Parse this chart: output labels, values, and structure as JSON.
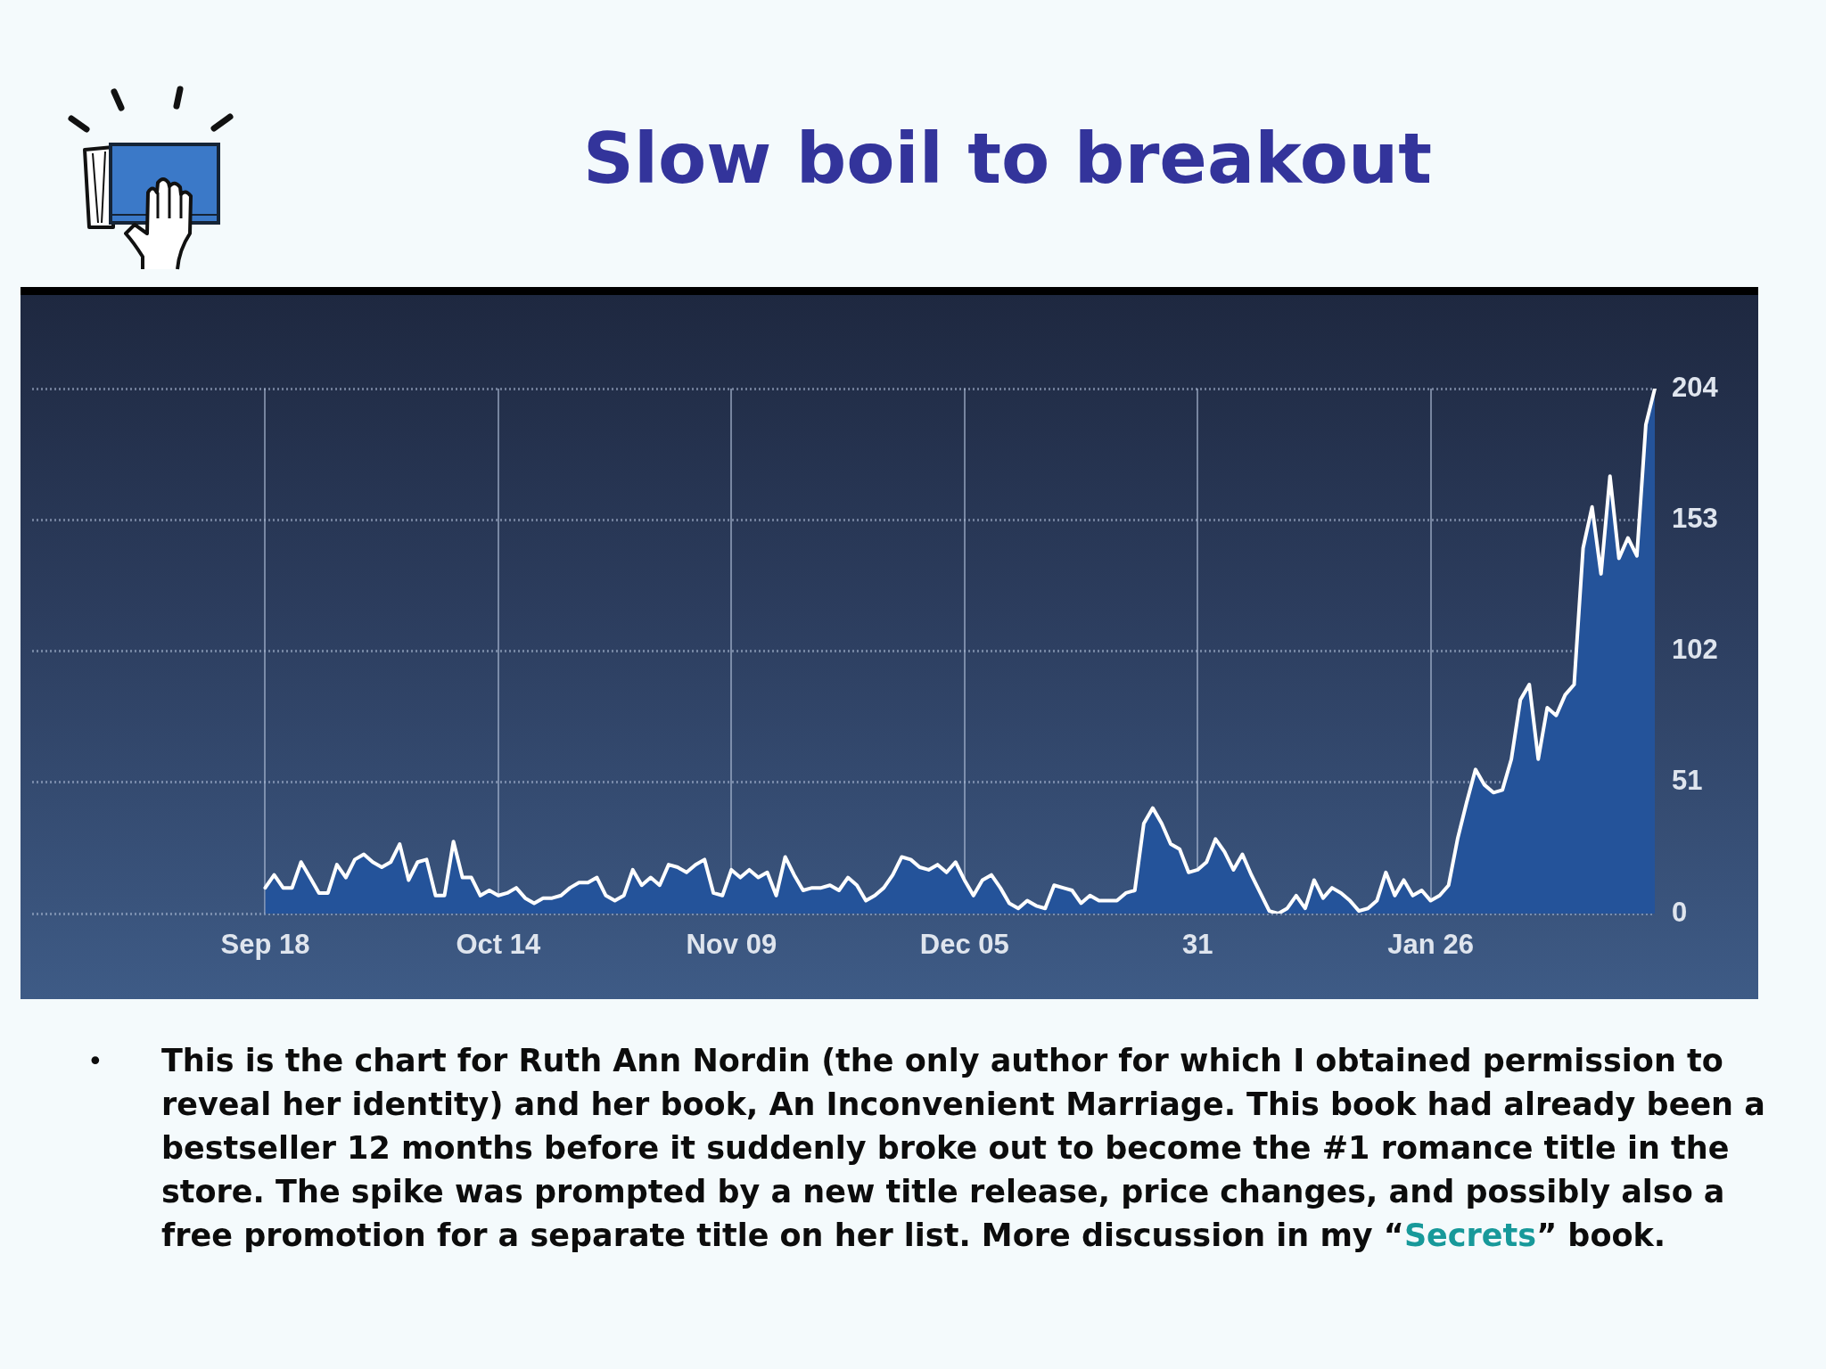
{
  "chart_data": {
    "type": "area",
    "title": "Slow boil to breakout",
    "categories": [
      null,
      null,
      null,
      null,
      null,
      null,
      null,
      null,
      null,
      null,
      null,
      null,
      null,
      null,
      null,
      null,
      null,
      null,
      null,
      null,
      null,
      null,
      null,
      null,
      null,
      null,
      "Sep 18",
      null,
      null,
      null,
      null,
      null,
      null,
      null,
      null,
      null,
      null,
      null,
      null,
      null,
      null,
      null,
      null,
      null,
      null,
      null,
      null,
      null,
      null,
      null,
      null,
      null,
      "Oct 14",
      null,
      null,
      null,
      null,
      null,
      null,
      null,
      null,
      null,
      null,
      null,
      null,
      null,
      null,
      null,
      null,
      null,
      null,
      null,
      null,
      null,
      null,
      null,
      null,
      null,
      "Nov 09",
      null,
      null,
      null,
      null,
      null,
      null,
      null,
      null,
      null,
      null,
      null,
      null,
      null,
      null,
      null,
      null,
      null,
      null,
      null,
      null,
      null,
      null,
      null,
      null,
      null,
      "Dec 05",
      null,
      null,
      null,
      null,
      null,
      null,
      null,
      null,
      null,
      null,
      null,
      null,
      null,
      null,
      null,
      null,
      null,
      null,
      null,
      null,
      null,
      null,
      null,
      null,
      null,
      "31",
      null,
      null,
      null,
      null,
      null,
      null,
      null,
      null,
      null,
      null,
      null,
      null,
      null,
      null,
      null,
      null,
      null,
      null,
      null,
      null,
      null,
      null,
      null,
      null,
      null,
      "Jan 26",
      null,
      null,
      null,
      null,
      null,
      null,
      null,
      null,
      null,
      null,
      null,
      null,
      null,
      null,
      null,
      null,
      null,
      null,
      null,
      null,
      null,
      null,
      null,
      null,
      null
    ],
    "series": [
      {
        "color": "#24539a",
        "axis": "y2",
        "values": [
          null,
          null,
          null,
          null,
          null,
          null,
          null,
          null,
          null,
          null,
          null,
          null,
          null,
          null,
          null,
          null,
          null,
          null,
          null,
          null,
          null,
          null,
          null,
          null,
          null,
          null,
          10,
          15,
          10,
          10,
          20,
          14,
          8,
          8,
          19,
          14,
          21,
          23,
          20,
          18,
          20,
          27,
          13,
          20,
          21,
          7,
          7,
          28,
          14,
          14,
          7,
          9,
          7,
          8,
          10,
          6,
          4,
          6,
          6,
          7,
          10,
          12,
          12,
          14,
          7,
          5,
          7,
          17,
          11,
          14,
          11,
          19,
          18,
          16,
          19,
          21,
          8,
          7,
          17,
          14,
          17,
          14,
          16,
          7,
          22,
          15,
          9,
          10,
          10,
          11,
          9,
          14,
          11,
          5,
          7,
          10,
          15,
          22,
          21,
          18,
          17,
          19,
          16,
          20,
          13,
          7,
          13,
          15,
          10,
          4,
          2,
          5,
          3,
          2,
          11,
          10,
          9,
          4,
          7,
          5,
          5,
          5,
          8,
          9,
          35,
          41,
          35,
          27,
          25,
          16,
          17,
          20,
          29,
          24,
          17,
          23,
          15,
          8,
          1,
          0,
          2,
          7,
          2,
          13,
          6,
          10,
          8,
          5,
          1,
          2,
          5,
          16,
          7,
          13,
          7,
          9,
          5,
          7,
          11,
          29,
          43,
          56,
          50,
          47,
          48,
          60,
          83,
          89,
          60,
          80,
          77,
          85,
          89,
          142,
          158,
          132,
          170,
          138,
          146,
          139,
          190,
          204
        ]
      }
    ],
    "y2lim": [
      0,
      204
    ],
    "y2ticks": [
      0,
      51,
      102,
      153,
      204
    ],
    "grid": true,
    "annotations": [
      "• This is the chart for Ruth Ann Nordin (the only author for which I obtained permission to reveal her identity) and her book, An Inconvenient Marriage. This book had already been a bestseller 12 months before it suddenly broke out to become the #1 romance title in the store. The spike was prompted by a new title release, price changes, and possibly also a free promotion for a separate title on her list. More discussion in my “Secrets” book."
    ]
  }
}
